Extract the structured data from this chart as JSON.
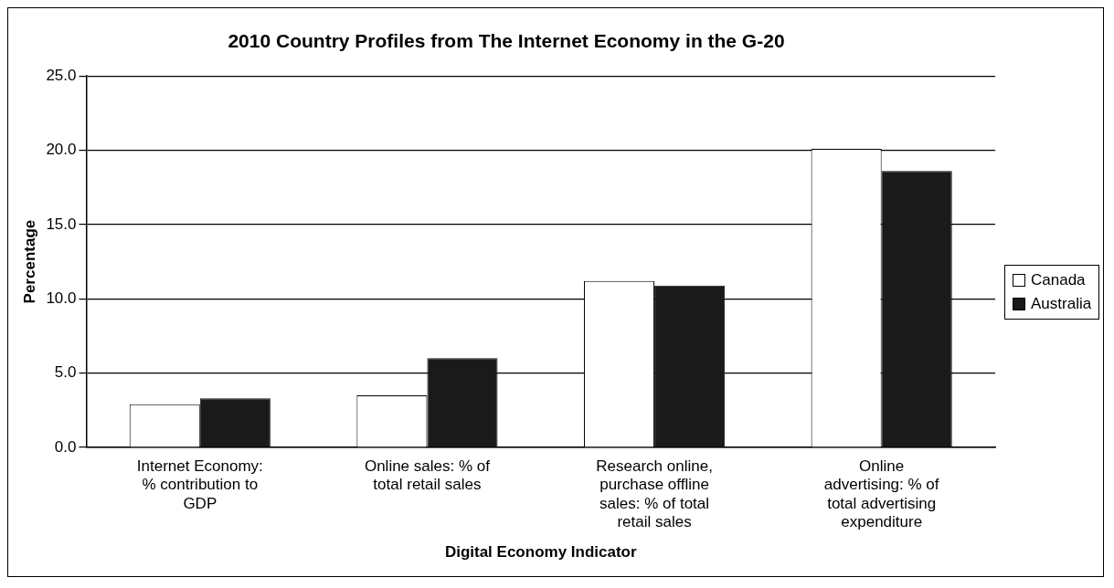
{
  "chart_data": {
    "type": "bar",
    "title": "2010 Country Profiles from The Internet Economy in the G-20",
    "xlabel": "Digital Economy Indicator",
    "ylabel": "Percentage",
    "categories": [
      "Internet Economy: % contribution to GDP",
      "Online sales: % of total retail sales",
      "Research online, purchase offline sales: % of total retail sales",
      "Online advertising: % of total advertising expenditure"
    ],
    "series": [
      {
        "name": "Canada",
        "color": "#ffffff",
        "values": [
          2.9,
          3.5,
          11.2,
          20.1
        ]
      },
      {
        "name": "Australia",
        "color": "#1a1a1a",
        "values": [
          3.3,
          6.0,
          10.9,
          18.6
        ]
      }
    ],
    "ylim": [
      0,
      25
    ],
    "yticks": [
      {
        "value": 0,
        "label": "0.0"
      },
      {
        "value": 5,
        "label": "5.0"
      },
      {
        "value": 10,
        "label": "10.0"
      },
      {
        "value": 15,
        "label": "15.0"
      },
      {
        "value": 20,
        "label": "20.0"
      },
      {
        "value": 25,
        "label": "25.0"
      }
    ],
    "grid": "y",
    "legend": "right"
  }
}
